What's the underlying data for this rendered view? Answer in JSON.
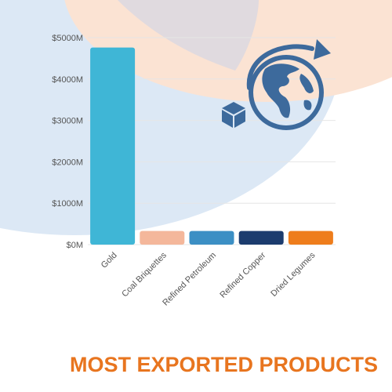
{
  "page_title": "MOST EXPORTED PRODUCTS",
  "icon": "globe-with-box-arrow-icon",
  "colors": {
    "bg_blue": "#dce8f5",
    "bg_peach": "#fbe3d3",
    "icon": "#3d6a9c",
    "title": "#e8751f",
    "axis_text": "#555555",
    "grid": "#e6e6e6"
  },
  "chart_data": {
    "type": "bar",
    "title": "",
    "xlabel": "",
    "ylabel": "",
    "ylim": [
      0,
      5000
    ],
    "y_ticks": [
      0,
      1000,
      2000,
      3000,
      4000,
      5000
    ],
    "y_tick_labels": [
      "$0M",
      "$1000M",
      "$2000M",
      "$3000M",
      "$4000M",
      "$5000M"
    ],
    "categories": [
      "Gold",
      "Coal Briquettes",
      "Refined Petroleum",
      "Refined Copper",
      "Dried Legumes"
    ],
    "values": [
      4760,
      330,
      330,
      330,
      330
    ],
    "bar_colors": [
      "#3fb6d6",
      "#f4b79b",
      "#3c8fc4",
      "#1c3c6e",
      "#ee7d1c"
    ],
    "grid": true,
    "legend": "none"
  }
}
